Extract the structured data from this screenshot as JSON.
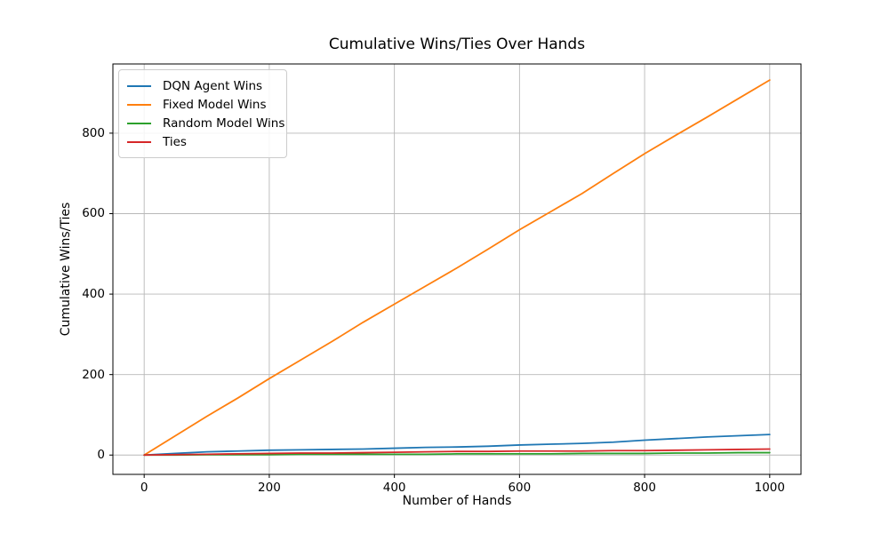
{
  "chart_data": {
    "type": "line",
    "title": "Cumulative Wins/Ties Over Hands",
    "xlabel": "Number of Hands",
    "ylabel": "Cumulative Wins/Ties",
    "x": [
      0,
      50,
      100,
      150,
      200,
      250,
      300,
      350,
      400,
      450,
      500,
      550,
      600,
      650,
      700,
      750,
      800,
      850,
      900,
      950,
      1000
    ],
    "series": [
      {
        "name": "DQN Agent Wins",
        "color": "#1f77b4",
        "values": [
          0,
          4,
          8,
          10,
          12,
          13,
          14,
          15,
          17,
          19,
          20,
          22,
          25,
          27,
          29,
          32,
          37,
          41,
          45,
          48,
          51
        ]
      },
      {
        "name": "Fixed Model Wins",
        "color": "#ff7f0e",
        "values": [
          0,
          48,
          96,
          142,
          190,
          236,
          282,
          330,
          375,
          420,
          465,
          512,
          560,
          605,
          650,
          700,
          749,
          795,
          840,
          886,
          932
        ]
      },
      {
        "name": "Random Model Wins",
        "color": "#2ca02c",
        "values": [
          0,
          0,
          1,
          1,
          1,
          2,
          2,
          2,
          2,
          2,
          3,
          3,
          3,
          3,
          4,
          4,
          4,
          5,
          5,
          6,
          6
        ]
      },
      {
        "name": "Ties",
        "color": "#d62728",
        "values": [
          0,
          1,
          2,
          3,
          4,
          5,
          5,
          6,
          7,
          8,
          9,
          9,
          10,
          10,
          10,
          11,
          11,
          12,
          13,
          14,
          15
        ]
      }
    ],
    "xticks": [
      0,
      200,
      400,
      600,
      800,
      1000
    ],
    "yticks": [
      0,
      200,
      400,
      600,
      800
    ],
    "xlim": [
      -50,
      1050
    ],
    "ylim": [
      -48,
      972
    ],
    "grid": true,
    "grid_color": "#b8b8b8",
    "spine_color": "#000000",
    "line_width": 1.8,
    "legend_position": "upper-left"
  }
}
